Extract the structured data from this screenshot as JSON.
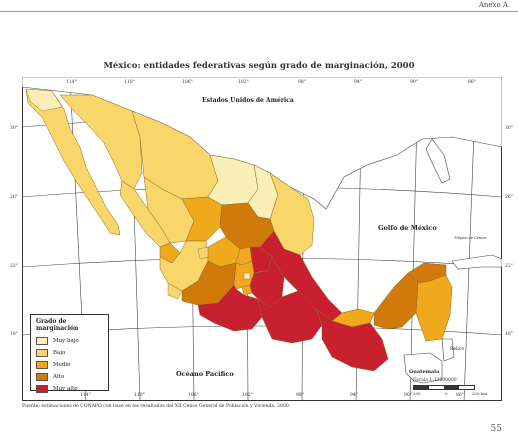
{
  "header": {
    "annex": "Anexo A"
  },
  "map": {
    "title": "México: entidades federativas según grado de marginación, 2000",
    "labels": {
      "usa": "Estados Unidos de América",
      "gulf": "Golfo de México",
      "pacific": "Océano Pacífico",
      "guatemala": "Guatemala",
      "belize": "Belice",
      "tropic": "Trópico de Cáncer"
    },
    "graticule": {
      "top": [
        "114°",
        "110°",
        "106°",
        "102°",
        "98°",
        "94°",
        "90°",
        "86°"
      ],
      "bottom": [
        "114°",
        "110°",
        "106°",
        "102°",
        "98°",
        "94°",
        "90°",
        "86°"
      ],
      "left": [
        "30°",
        "26°",
        "22°",
        "18°"
      ],
      "right": [
        "30°",
        "26°",
        "22°",
        "18°"
      ]
    },
    "scale": {
      "title": "Escala 1:13000000",
      "ticks": [
        "200",
        "0",
        "200 km"
      ]
    }
  },
  "legend": {
    "title": "Grado de marginación",
    "items": [
      {
        "label": "Muy bajo",
        "color": "#fbefb8"
      },
      {
        "label": "Bajo",
        "color": "#f8d66a"
      },
      {
        "label": "Medio",
        "color": "#f0a81c"
      },
      {
        "label": "Alto",
        "color": "#d07a0c"
      },
      {
        "label": "Muy alto",
        "color": "#c8202e"
      }
    ]
  },
  "colors": {
    "very_low": "#fbefb8",
    "low": "#f8d66a",
    "medium": "#f0a81c",
    "high": "#d07a0c",
    "very_high": "#c8202e"
  },
  "source": "Fuente: estimaciones de CONAPO con base en los resultados del XII Censo General de Población y Vivienda, 2000.",
  "page_number": "55"
}
